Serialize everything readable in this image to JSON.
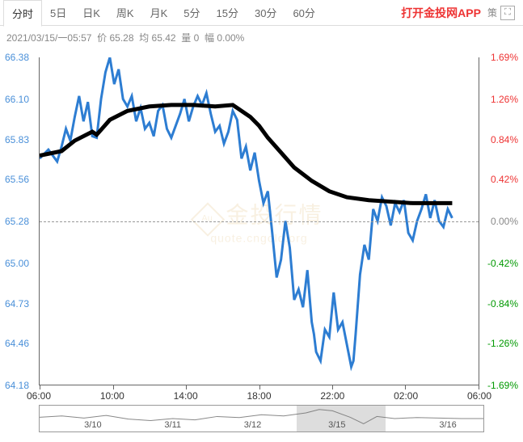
{
  "tabs": [
    "分时",
    "5日",
    "日K",
    "周K",
    "月K",
    "5分",
    "15分",
    "30分",
    "60分"
  ],
  "active_tab": 0,
  "app_link": "打开金投网APP",
  "right_text": "策",
  "info": {
    "datetime": "2021/03/15/一05:57",
    "price_label": "价",
    "price": "65.28",
    "avg_label": "均",
    "avg": "65.42",
    "vol_label": "量",
    "vol": "0",
    "chg_label": "幅",
    "chg": "0.00%"
  },
  "chart": {
    "type": "line",
    "ylim": [
      64.18,
      66.38
    ],
    "y_ticks": [
      66.38,
      66.1,
      65.83,
      65.56,
      65.28,
      65.0,
      64.73,
      64.46,
      64.18
    ],
    "y_right_labels": [
      "1.69%",
      "1.26%",
      "0.84%",
      "0.42%",
      "0.00%",
      "-0.42%",
      "-0.84%",
      "-1.26%",
      "-1.69%"
    ],
    "y_right_colors": [
      "#e33",
      "#e33",
      "#e33",
      "#e33",
      "#888",
      "#090",
      "#090",
      "#090",
      "#090"
    ],
    "y_left_color": "#4a90d9",
    "x_ticks": [
      "06:00",
      "10:00",
      "14:00",
      "18:00",
      "22:00",
      "02:00",
      "06:00"
    ],
    "x_positions": [
      0,
      0.1667,
      0.3333,
      0.5,
      0.6667,
      0.8333,
      1.0
    ],
    "baseline": 65.28,
    "price_color": "#2d7dd2",
    "avg_color": "#000000",
    "background": "#ffffff",
    "grid_color": "#eeeeee",
    "price_line_width": 1.2,
    "avg_line_width": 1.8,
    "price_data": [
      [
        0.0,
        65.7
      ],
      [
        0.02,
        65.76
      ],
      [
        0.04,
        65.68
      ],
      [
        0.05,
        65.78
      ],
      [
        0.06,
        65.9
      ],
      [
        0.07,
        65.82
      ],
      [
        0.08,
        65.98
      ],
      [
        0.09,
        66.12
      ],
      [
        0.1,
        65.95
      ],
      [
        0.11,
        66.08
      ],
      [
        0.12,
        65.85
      ],
      [
        0.13,
        65.84
      ],
      [
        0.14,
        66.1
      ],
      [
        0.15,
        66.28
      ],
      [
        0.16,
        66.38
      ],
      [
        0.17,
        66.2
      ],
      [
        0.18,
        66.3
      ],
      [
        0.19,
        66.1
      ],
      [
        0.2,
        66.05
      ],
      [
        0.21,
        66.12
      ],
      [
        0.22,
        65.95
      ],
      [
        0.23,
        66.04
      ],
      [
        0.24,
        65.9
      ],
      [
        0.25,
        65.94
      ],
      [
        0.26,
        65.85
      ],
      [
        0.27,
        66.02
      ],
      [
        0.28,
        66.06
      ],
      [
        0.29,
        65.9
      ],
      [
        0.3,
        65.84
      ],
      [
        0.31,
        65.92
      ],
      [
        0.32,
        66.0
      ],
      [
        0.33,
        66.1
      ],
      [
        0.34,
        65.95
      ],
      [
        0.35,
        66.05
      ],
      [
        0.36,
        66.12
      ],
      [
        0.37,
        66.06
      ],
      [
        0.38,
        66.14
      ],
      [
        0.39,
        66.0
      ],
      [
        0.4,
        65.88
      ],
      [
        0.41,
        65.92
      ],
      [
        0.42,
        65.8
      ],
      [
        0.43,
        65.88
      ],
      [
        0.44,
        66.02
      ],
      [
        0.45,
        65.96
      ],
      [
        0.46,
        65.7
      ],
      [
        0.47,
        65.78
      ],
      [
        0.48,
        65.62
      ],
      [
        0.49,
        65.74
      ],
      [
        0.5,
        65.55
      ],
      [
        0.51,
        65.4
      ],
      [
        0.52,
        65.48
      ],
      [
        0.53,
        65.2
      ],
      [
        0.54,
        64.9
      ],
      [
        0.55,
        65.02
      ],
      [
        0.56,
        65.28
      ],
      [
        0.57,
        65.1
      ],
      [
        0.58,
        64.75
      ],
      [
        0.59,
        64.82
      ],
      [
        0.6,
        64.7
      ],
      [
        0.61,
        64.95
      ],
      [
        0.62,
        64.6
      ],
      [
        0.625,
        64.52
      ],
      [
        0.63,
        64.4
      ],
      [
        0.64,
        64.34
      ],
      [
        0.65,
        64.55
      ],
      [
        0.66,
        64.5
      ],
      [
        0.67,
        64.8
      ],
      [
        0.68,
        64.55
      ],
      [
        0.69,
        64.6
      ],
      [
        0.7,
        64.45
      ],
      [
        0.71,
        64.3
      ],
      [
        0.715,
        64.34
      ],
      [
        0.72,
        64.52
      ],
      [
        0.73,
        64.92
      ],
      [
        0.74,
        65.12
      ],
      [
        0.75,
        65.02
      ],
      [
        0.76,
        65.36
      ],
      [
        0.77,
        65.28
      ],
      [
        0.78,
        65.44
      ],
      [
        0.79,
        65.38
      ],
      [
        0.8,
        65.25
      ],
      [
        0.81,
        65.4
      ],
      [
        0.82,
        65.34
      ],
      [
        0.83,
        65.42
      ],
      [
        0.84,
        65.2
      ],
      [
        0.85,
        65.15
      ],
      [
        0.86,
        65.28
      ],
      [
        0.87,
        65.36
      ],
      [
        0.88,
        65.46
      ],
      [
        0.89,
        65.3
      ],
      [
        0.9,
        65.42
      ],
      [
        0.91,
        65.28
      ],
      [
        0.92,
        65.24
      ],
      [
        0.93,
        65.36
      ],
      [
        0.94,
        65.3
      ]
    ],
    "avg_data": [
      [
        0.0,
        65.72
      ],
      [
        0.05,
        65.75
      ],
      [
        0.08,
        65.82
      ],
      [
        0.12,
        65.88
      ],
      [
        0.13,
        65.86
      ],
      [
        0.16,
        65.96
      ],
      [
        0.2,
        66.02
      ],
      [
        0.25,
        66.05
      ],
      [
        0.3,
        66.06
      ],
      [
        0.35,
        66.06
      ],
      [
        0.4,
        66.05
      ],
      [
        0.44,
        66.06
      ],
      [
        0.45,
        66.04
      ],
      [
        0.48,
        65.98
      ],
      [
        0.5,
        65.92
      ],
      [
        0.52,
        65.84
      ],
      [
        0.55,
        65.74
      ],
      [
        0.58,
        65.64
      ],
      [
        0.62,
        65.55
      ],
      [
        0.66,
        65.48
      ],
      [
        0.7,
        65.44
      ],
      [
        0.75,
        65.42
      ],
      [
        0.8,
        65.41
      ],
      [
        0.85,
        65.4
      ],
      [
        0.9,
        65.4
      ],
      [
        0.94,
        65.4
      ]
    ]
  },
  "navigator": {
    "labels": [
      "3/10",
      "3/11",
      "3/12",
      "3/15",
      "3/16"
    ],
    "positions": [
      0.12,
      0.3,
      0.48,
      0.67,
      0.92
    ],
    "window": [
      0.58,
      0.78
    ],
    "line_color": "#888888",
    "data": [
      [
        0.0,
        0.55
      ],
      [
        0.05,
        0.6
      ],
      [
        0.1,
        0.52
      ],
      [
        0.15,
        0.62
      ],
      [
        0.2,
        0.48
      ],
      [
        0.25,
        0.42
      ],
      [
        0.3,
        0.5
      ],
      [
        0.35,
        0.45
      ],
      [
        0.4,
        0.58
      ],
      [
        0.45,
        0.54
      ],
      [
        0.5,
        0.65
      ],
      [
        0.55,
        0.6
      ],
      [
        0.6,
        0.72
      ],
      [
        0.63,
        0.85
      ],
      [
        0.66,
        0.8
      ],
      [
        0.7,
        0.55
      ],
      [
        0.73,
        0.3
      ],
      [
        0.76,
        0.58
      ],
      [
        0.8,
        0.5
      ],
      [
        0.85,
        0.54
      ],
      [
        0.9,
        0.52
      ],
      [
        0.95,
        0.5
      ],
      [
        1.0,
        0.5
      ]
    ]
  },
  "watermark": {
    "main": "金投行情",
    "sub": "quote.cngold.org"
  }
}
